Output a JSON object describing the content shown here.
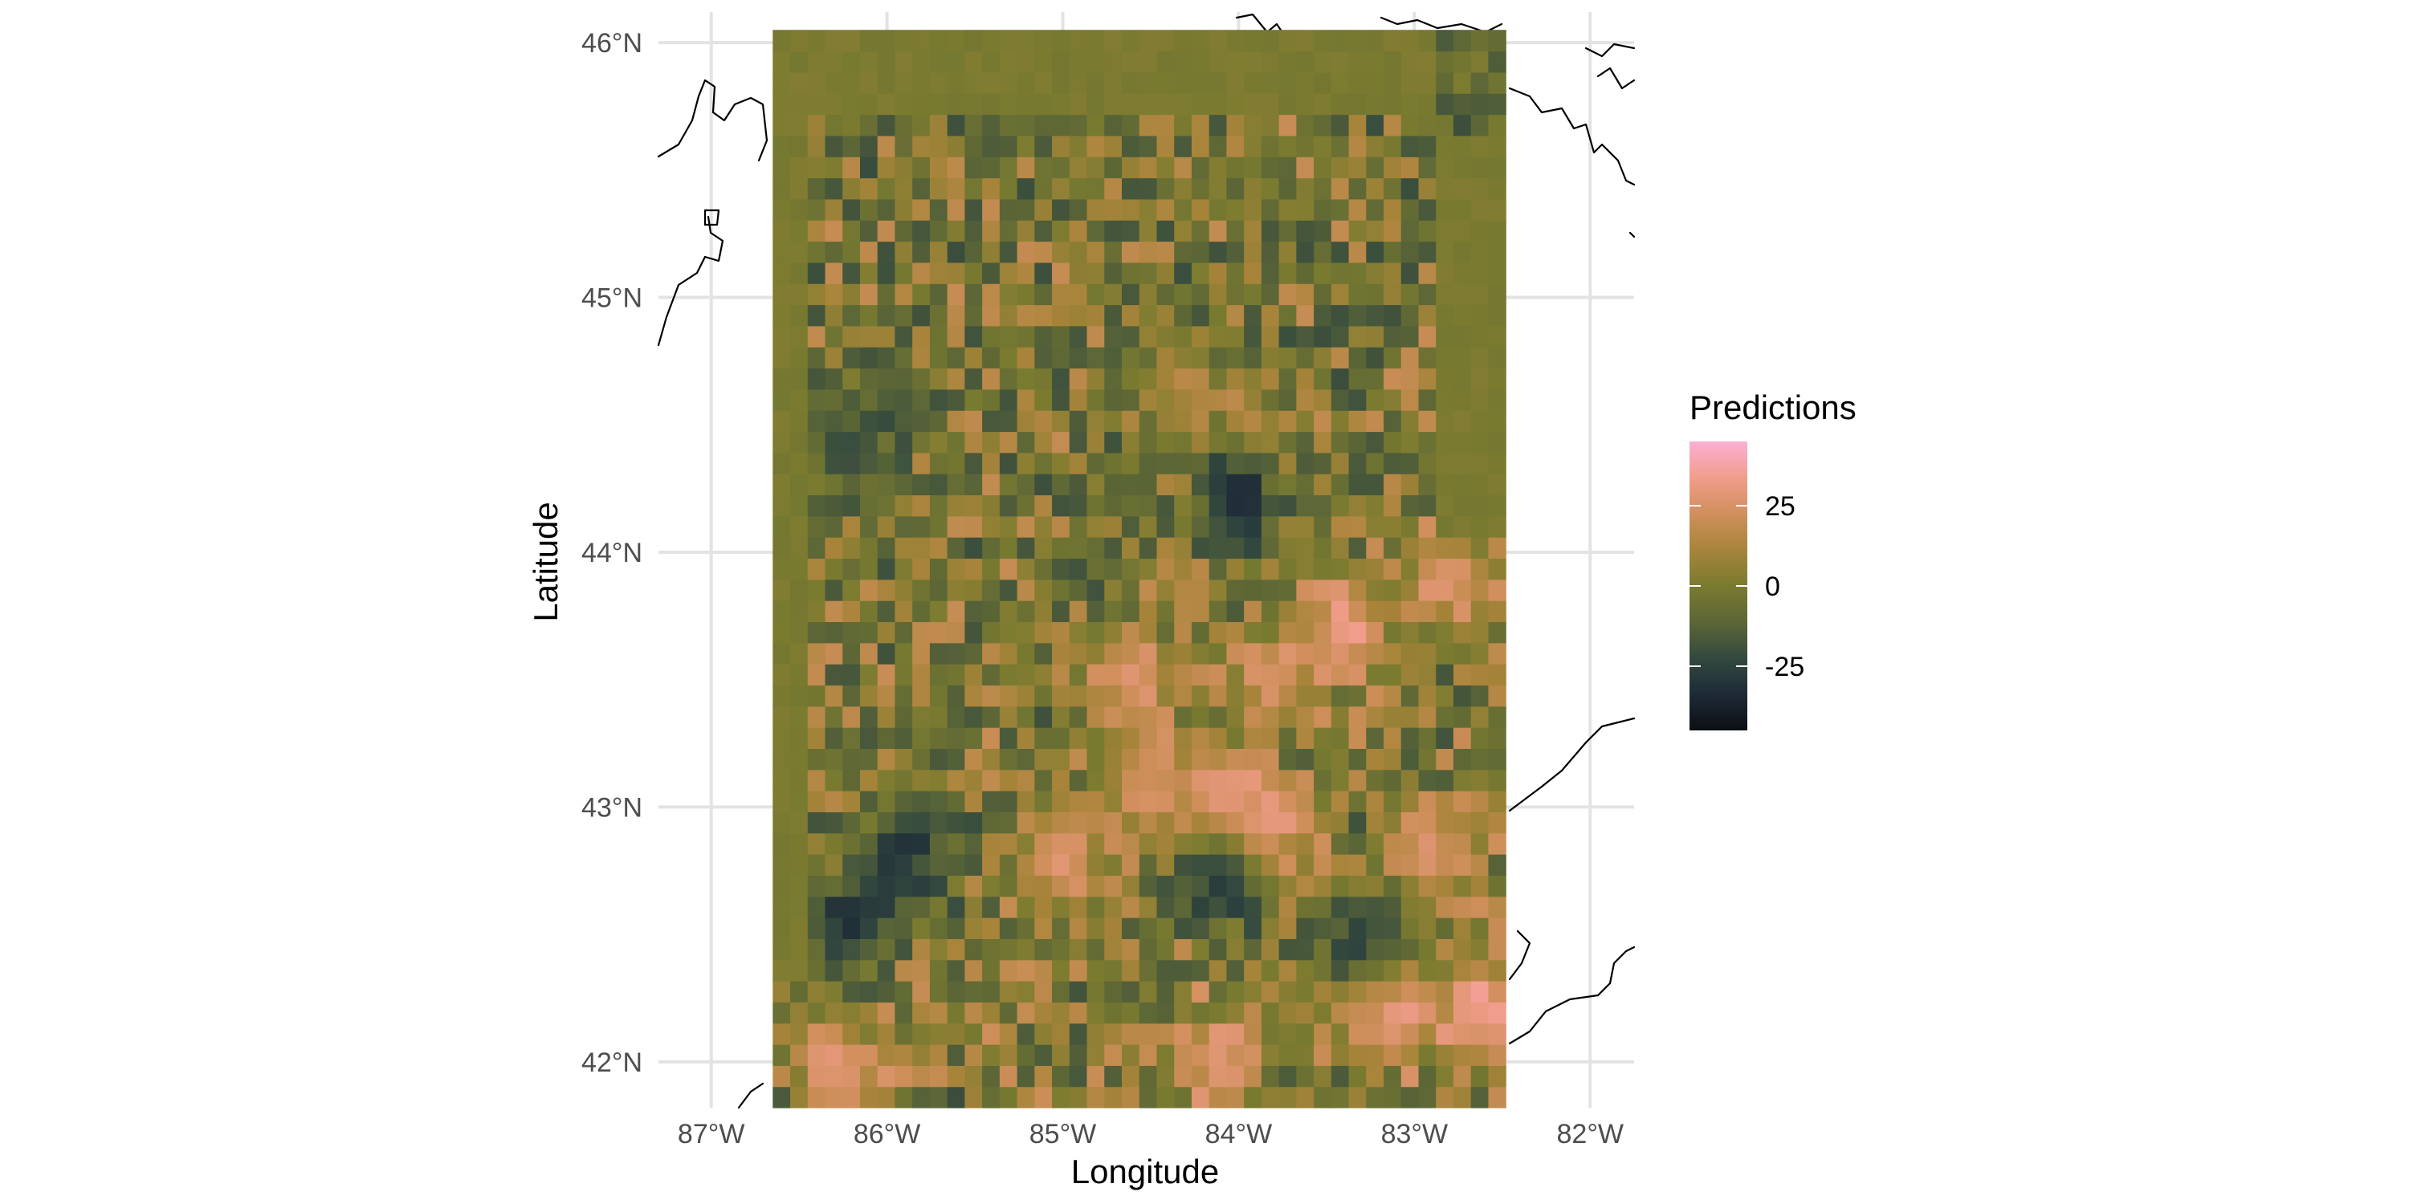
{
  "chart_data": {
    "type": "heatmap",
    "title": "",
    "xlabel": "Longitude",
    "ylabel": "Latitude",
    "legend_title": "Predictions",
    "legend_position": "right",
    "legend_ticks": [
      25,
      0,
      -25
    ],
    "legend_tick_labels": [
      "25",
      "0",
      "-25"
    ],
    "value_range": [
      -45,
      45
    ],
    "colorscale": [
      "#0c0e14",
      "#1d2b37",
      "#33493f",
      "#5c6636",
      "#7a7b30",
      "#a7843a",
      "#d08f5c",
      "#f19d8c",
      "#fab0d4"
    ],
    "xlim": [
      -87.3,
      -81.75
    ],
    "ylim": [
      41.82,
      46.12
    ],
    "x_ticks": [
      -87,
      -86,
      -85,
      -84,
      -83,
      -82
    ],
    "x_tick_labels": [
      "87°W",
      "86°W",
      "85°W",
      "84°W",
      "83°W",
      "82°W"
    ],
    "y_ticks": [
      42,
      43,
      44,
      45,
      46
    ],
    "y_tick_labels": [
      "42°N",
      "43°N",
      "44°N",
      "45°N",
      "46°N"
    ],
    "grid": true,
    "raster_extent": {
      "lon": [
        -86.65,
        -82.48
      ],
      "lat": [
        41.82,
        46.05
      ]
    },
    "raster_resolution_deg": {
      "lon": 0.1,
      "lat": 0.083
    },
    "notable_values": [
      {
        "lon": -82.6,
        "lat": 42.2,
        "value": 40
      },
      {
        "lon": -83.1,
        "lat": 42.2,
        "value": 40
      },
      {
        "lon": -83.9,
        "lat": 42.9,
        "value": 42
      },
      {
        "lon": -84.1,
        "lat": 43.0,
        "value": 35
      },
      {
        "lon": -83.4,
        "lat": 43.7,
        "value": 38
      },
      {
        "lon": -82.8,
        "lat": 43.9,
        "value": 32
      },
      {
        "lon": -83.8,
        "lat": 43.5,
        "value": 30
      },
      {
        "lon": -84.6,
        "lat": 43.5,
        "value": 30
      },
      {
        "lon": -85.0,
        "lat": 42.8,
        "value": 30
      },
      {
        "lon": -84.5,
        "lat": 43.1,
        "value": 28
      },
      {
        "lon": -86.3,
        "lat": 42.0,
        "value": 32
      },
      {
        "lon": -84.1,
        "lat": 42.0,
        "value": 34
      },
      {
        "lon": -82.9,
        "lat": 42.8,
        "value": 30
      },
      {
        "lon": -84.3,
        "lat": 44.6,
        "value": 15
      },
      {
        "lon": -84.0,
        "lat": 44.2,
        "value": -38
      },
      {
        "lon": -86.2,
        "lat": 42.55,
        "value": -40
      },
      {
        "lon": -85.9,
        "lat": 42.85,
        "value": -35
      },
      {
        "lon": -84.1,
        "lat": 42.7,
        "value": -35
      },
      {
        "lon": -83.3,
        "lat": 42.5,
        "value": -28
      },
      {
        "lon": -82.7,
        "lat": 45.8,
        "value": -22
      },
      {
        "lon": -86.2,
        "lat": 44.4,
        "value": -25
      }
    ]
  }
}
